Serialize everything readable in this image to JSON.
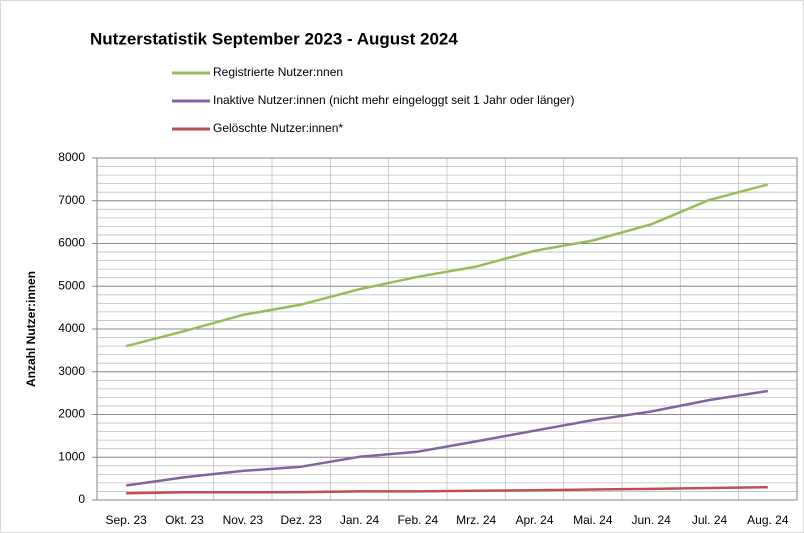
{
  "chart_data": {
    "type": "line",
    "title": "Nutzerstatistik September 2023 - August 2024",
    "y_label": "Anzahl Nutzer:innen",
    "categories": [
      "Sep. 23",
      "Okt. 23",
      "Nov. 23",
      "Dez. 23",
      "Jan. 24",
      "Feb. 24",
      "Mrz. 24",
      "Apr. 24",
      "Mai. 24",
      "Jun. 24",
      "Jul. 24",
      "Aug. 24"
    ],
    "series": [
      {
        "name": "Registrierte Nutzer:nnen",
        "color": "#9bbb59",
        "values": [
          3600,
          3950,
          4330,
          4570,
          4930,
          5220,
          5460,
          5830,
          6070,
          6450,
          7020,
          7380
        ]
      },
      {
        "name": "Inaktive Nutzer:innen (nicht mehr eingeloggt seit 1 Jahr oder länger)",
        "color": "#8064a2",
        "values": [
          340,
          530,
          680,
          780,
          1010,
          1130,
          1370,
          1620,
          1870,
          2070,
          2340,
          2550
        ]
      },
      {
        "name": "Gelöschte Nutzer:innen*",
        "color": "#c0504d",
        "values": [
          160,
          180,
          180,
          185,
          200,
          200,
          215,
          230,
          245,
          260,
          280,
          300
        ]
      }
    ],
    "ylim": [
      0,
      8000
    ],
    "yticks": [
      0,
      1000,
      2000,
      3000,
      4000,
      5000,
      6000,
      7000,
      8000
    ],
    "minor_grid_step": 200,
    "grid": true
  }
}
